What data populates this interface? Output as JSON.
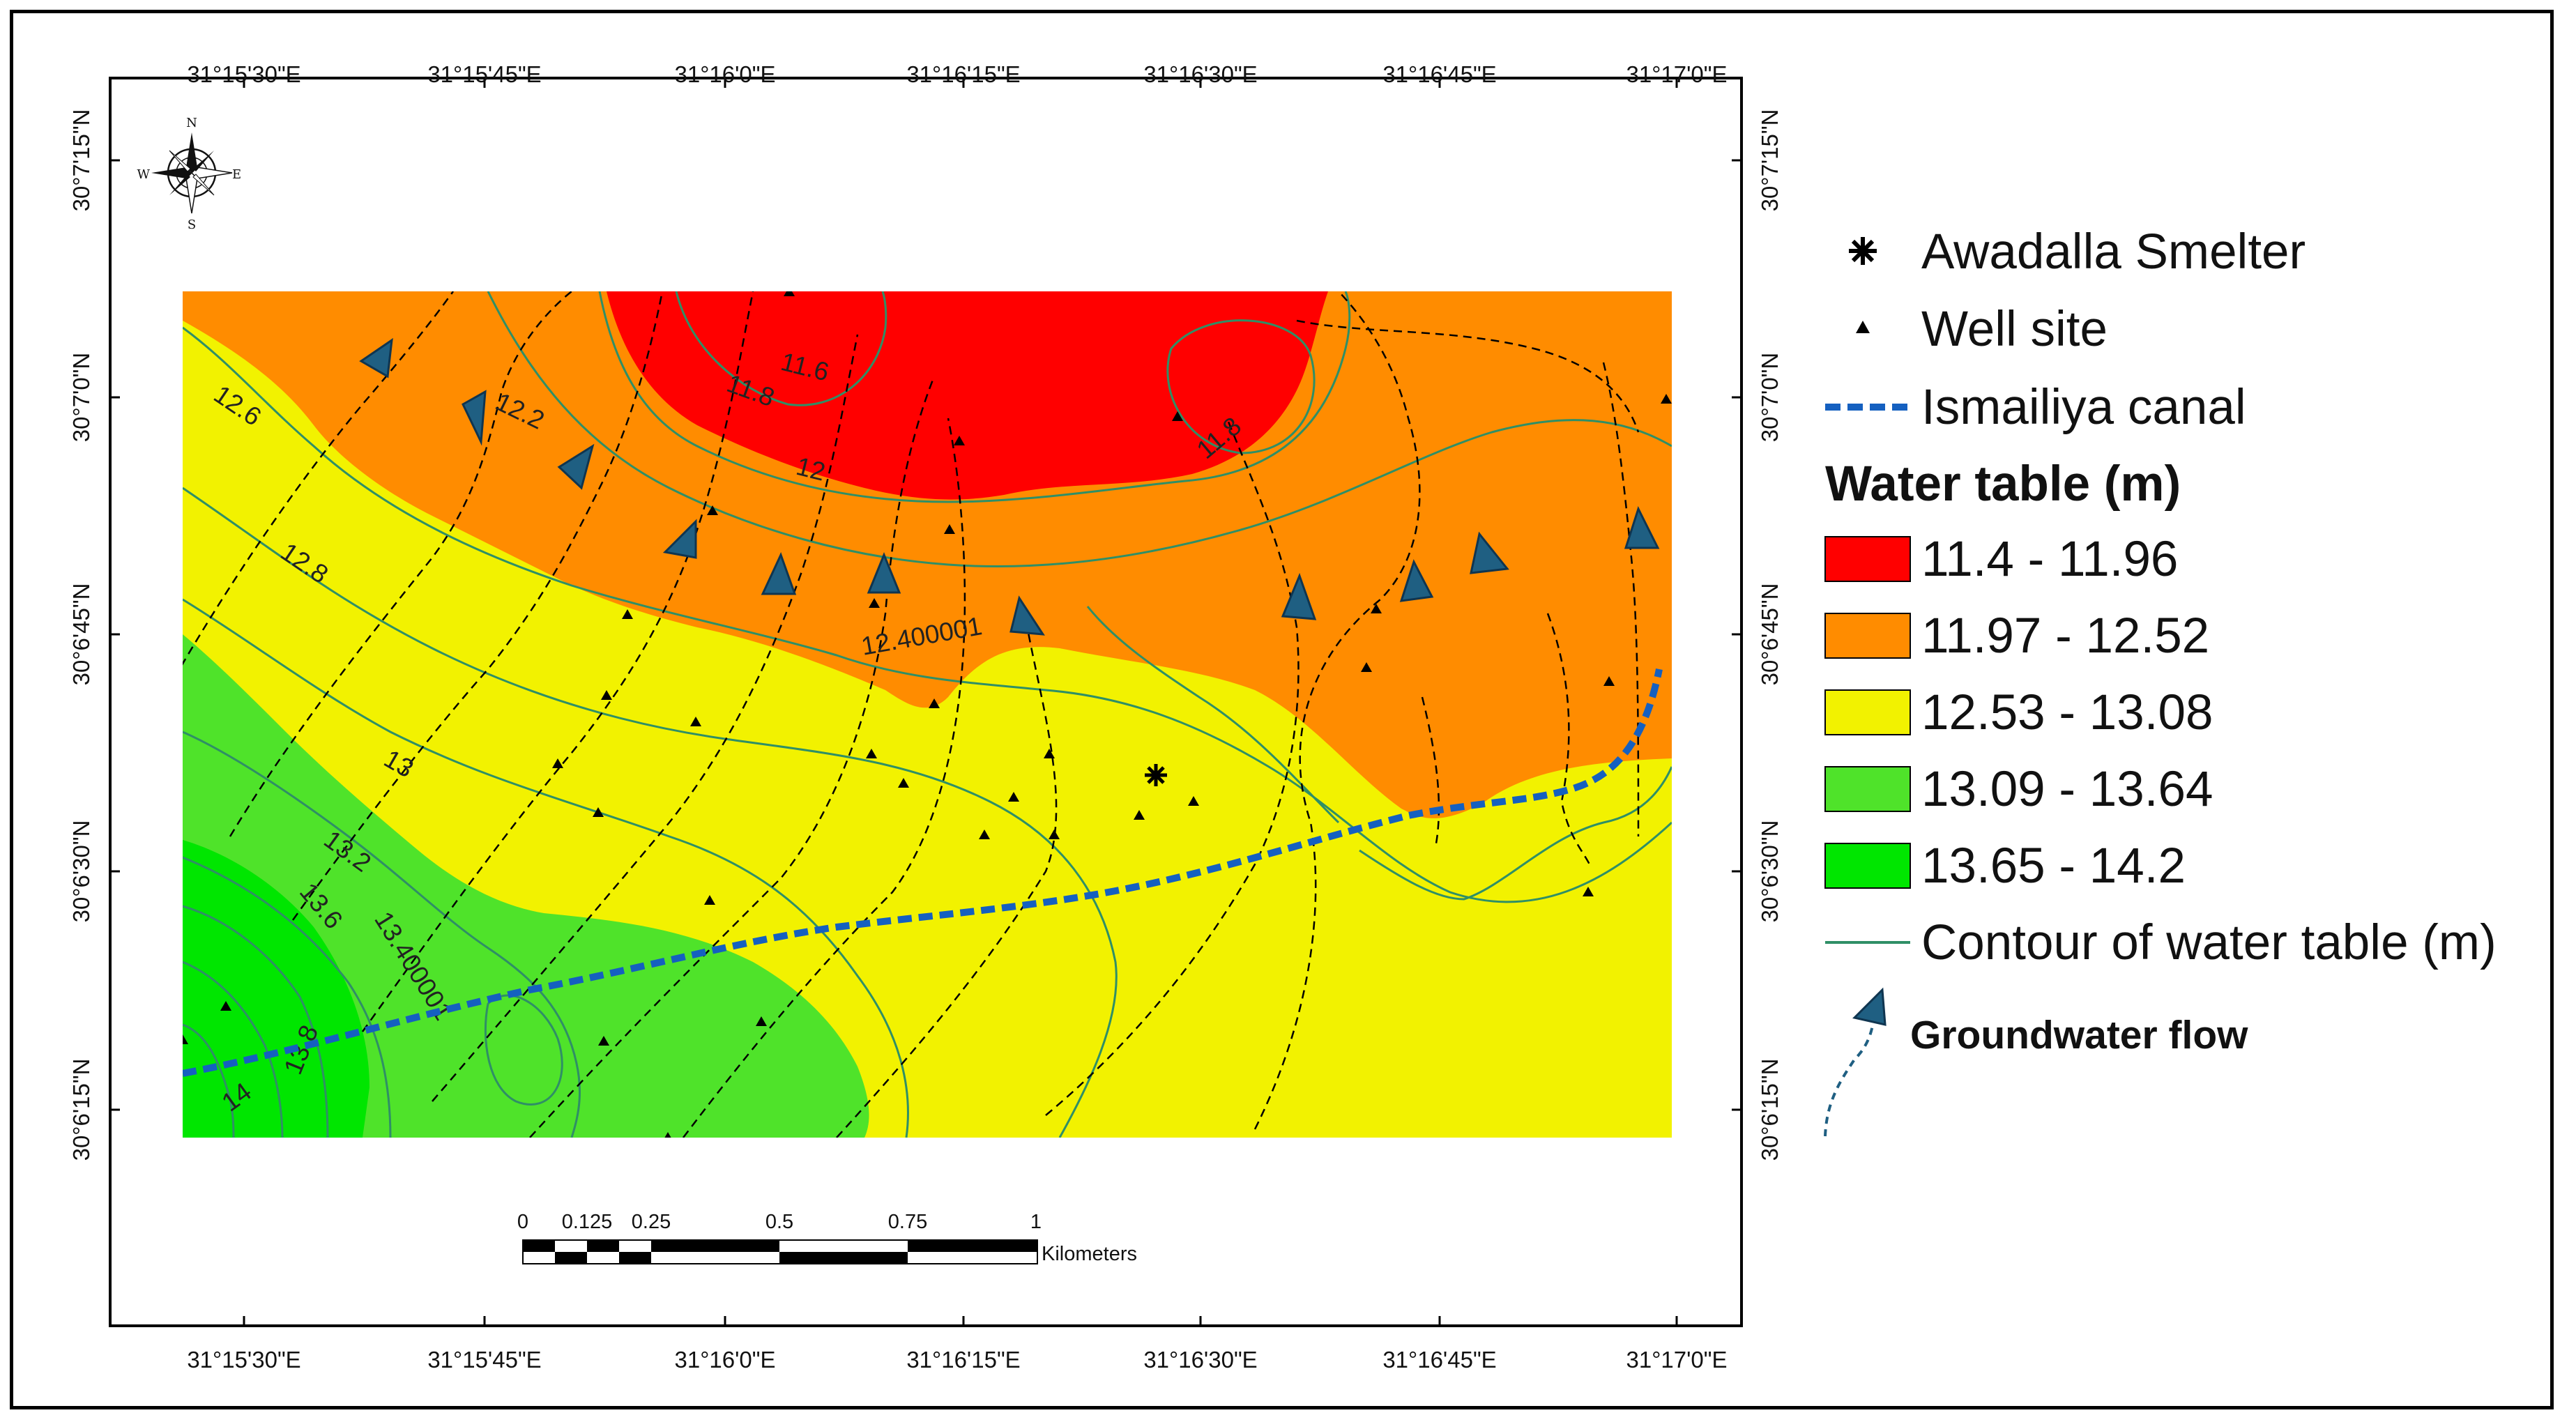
{
  "map": {
    "top_axis_labels": [
      "31°15'30\"E",
      "31°15'45\"E",
      "31°16'0\"E",
      "31°16'15\"E",
      "31°16'30\"E",
      "31°16'45\"E",
      "31°17'0\"E"
    ],
    "bottom_axis_labels": [
      "31°15'30\"E",
      "31°15'45\"E",
      "31°16'0\"E",
      "31°16'15\"E",
      "31°16'30\"E",
      "31°16'45\"E",
      "31°17'0\"E"
    ],
    "left_axis_labels": [
      "30°7'15\"N",
      "30°7'0\"N",
      "30°6'45\"N",
      "30°6'30\"N",
      "30°6'15\"N"
    ],
    "right_axis_labels": [
      "30°7'15\"N",
      "30°7'0\"N",
      "30°6'45\"N",
      "30°6'30\"N",
      "30°6'15\"N"
    ],
    "contour_labels": [
      "11.6",
      "11.8",
      "11.8",
      "12",
      "12.2",
      "12.400001",
      "12.6",
      "12.8",
      "13",
      "13.2",
      "13.400001",
      "13.6",
      "13.8",
      "14"
    ],
    "compass": {
      "n": "N",
      "s": "S",
      "e": "E",
      "w": "W"
    },
    "scale_bar": {
      "ticks": [
        "0",
        "0.125",
        "0.25",
        "0.5",
        "0.75",
        "1"
      ],
      "unit": "Kilometers"
    }
  },
  "legend": {
    "smelter": "Awadalla Smelter",
    "well": "Well site",
    "canal": "Ismailiya canal",
    "title": "Water table (m)",
    "classes": [
      {
        "label": "11.4 - 11.96",
        "color": "#ff0000"
      },
      {
        "label": "11.97 - 12.52",
        "color": "#ff8c00"
      },
      {
        "label": "12.53 - 13.08",
        "color": "#f2f200"
      },
      {
        "label": "13.09 - 13.64",
        "color": "#4fe32a"
      },
      {
        "label": "13.65 - 14.2",
        "color": "#00e600"
      }
    ],
    "contour": "Contour of water table (m)",
    "flow": "Groundwater flow"
  },
  "colors": {
    "contour": "#2f8f66",
    "canal": "#1560c0",
    "flow_arrow": "#1f5f82",
    "flow_arrow_stroke": "#0f3550"
  }
}
